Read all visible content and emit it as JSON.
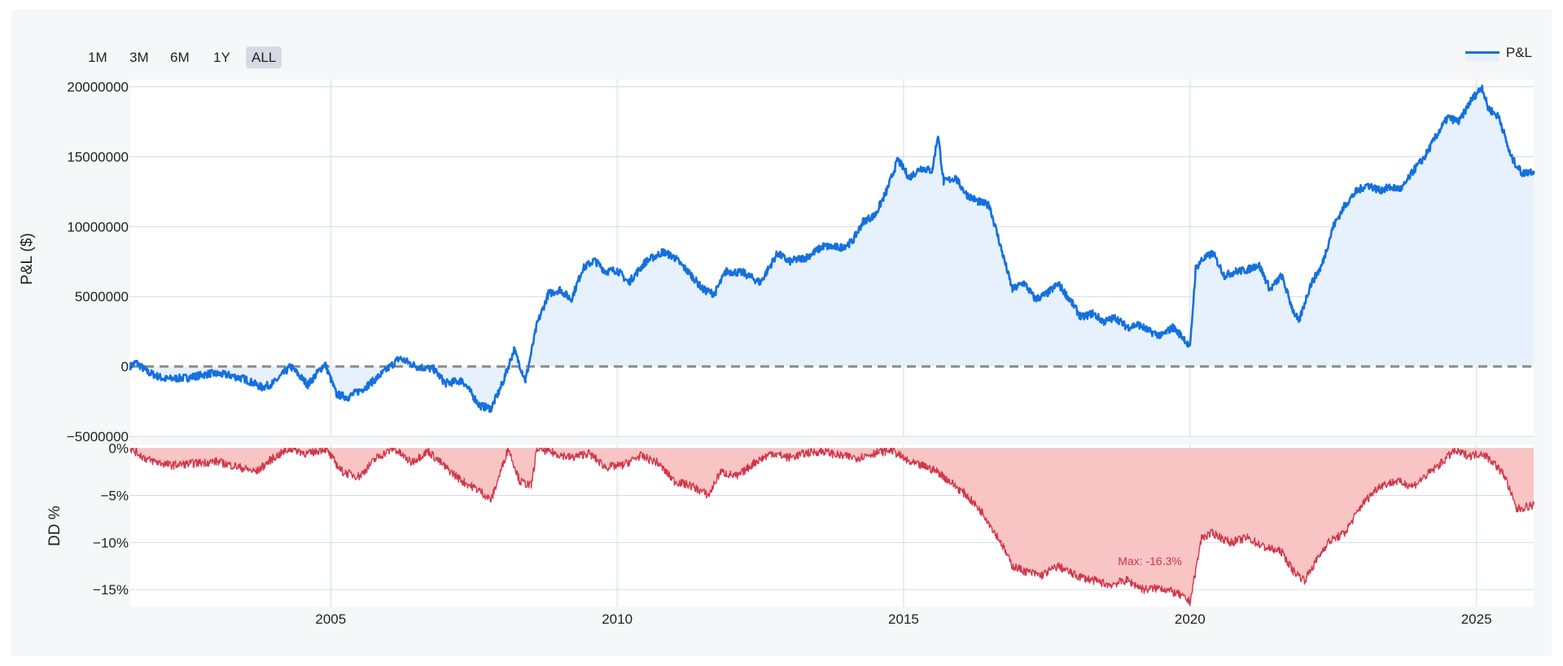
{
  "range_selector": {
    "buttons": [
      {
        "label": "1M",
        "active": false
      },
      {
        "label": "3M",
        "active": false
      },
      {
        "label": "6M",
        "active": false
      },
      {
        "label": "1Y",
        "active": false
      },
      {
        "label": "ALL",
        "active": true
      }
    ]
  },
  "colors": {
    "pnl_line": "#1570dd",
    "pnl_fill": "#e6f1fd",
    "dd_line": "#d0364a",
    "dd_fill": "#f9c4c4",
    "zero_line": "#8a8a8a",
    "grid": "#d5dbe3"
  },
  "chart_data": [
    {
      "type": "line",
      "title": "",
      "ylabel": "P&L ($)",
      "xlabel": "",
      "xlim": [
        2001.5,
        2026.0
      ],
      "ylim": [
        -5000000,
        20500000
      ],
      "y_ticks": [
        -5000000,
        0,
        5000000,
        10000000,
        15000000,
        20000000
      ],
      "y_tick_labels": [
        "−5000000",
        "0",
        "5000000",
        "10000000",
        "15000000",
        "20000000"
      ],
      "grid": true,
      "legend": {
        "placement": "top-right",
        "entries": [
          "P&L"
        ]
      },
      "reference_line": {
        "y": 0,
        "style": "dashed"
      },
      "series": [
        {
          "name": "P&L",
          "x": [
            2001.5,
            2001.6,
            2001.8,
            2002.1,
            2002.5,
            2002.9,
            2003.2,
            2003.5,
            2003.8,
            2004.0,
            2004.3,
            2004.6,
            2004.9,
            2005.1,
            2005.3,
            2005.6,
            2005.9,
            2006.2,
            2006.5,
            2006.8,
            2007.0,
            2007.3,
            2007.6,
            2007.8,
            2008.0,
            2008.2,
            2008.4,
            2008.6,
            2008.8,
            2009.0,
            2009.2,
            2009.4,
            2009.6,
            2009.8,
            2010.0,
            2010.2,
            2010.5,
            2010.8,
            2011.0,
            2011.3,
            2011.5,
            2011.7,
            2011.9,
            2012.2,
            2012.5,
            2012.8,
            2013.0,
            2013.3,
            2013.6,
            2013.9,
            2014.1,
            2014.3,
            2014.5,
            2014.7,
            2014.9,
            2015.1,
            2015.3,
            2015.5,
            2015.6,
            2015.7,
            2015.9,
            2016.1,
            2016.3,
            2016.5,
            2016.7,
            2016.9,
            2017.1,
            2017.3,
            2017.5,
            2017.7,
            2017.9,
            2018.1,
            2018.3,
            2018.5,
            2018.7,
            2018.9,
            2019.1,
            2019.3,
            2019.5,
            2019.7,
            2019.9,
            2020.0,
            2020.1,
            2020.2,
            2020.4,
            2020.6,
            2020.8,
            2021.0,
            2021.2,
            2021.4,
            2021.6,
            2021.8,
            2021.9,
            2022.1,
            2022.3,
            2022.5,
            2022.7,
            2022.9,
            2023.1,
            2023.3,
            2023.5,
            2023.7,
            2023.9,
            2024.1,
            2024.3,
            2024.5,
            2024.7,
            2024.9,
            2025.1,
            2025.2,
            2025.4,
            2025.6,
            2025.8,
            2026.0
          ],
          "values": [
            0,
            300000,
            -400000,
            -900000,
            -800000,
            -500000,
            -600000,
            -900000,
            -1500000,
            -1200000,
            0,
            -1300000,
            200000,
            -2000000,
            -2200000,
            -1500000,
            -500000,
            600000,
            0,
            -200000,
            -1200000,
            -1000000,
            -2800000,
            -3000000,
            -1200000,
            1200000,
            -1000000,
            3000000,
            5200000,
            5500000,
            4800000,
            7000000,
            7600000,
            6800000,
            6900000,
            6000000,
            7500000,
            8200000,
            7800000,
            6500000,
            5500000,
            5200000,
            6800000,
            6700000,
            6000000,
            8100000,
            7500000,
            7800000,
            8600000,
            8500000,
            8900000,
            10400000,
            10800000,
            12500000,
            14800000,
            13500000,
            14200000,
            14000000,
            16600000,
            13200000,
            13500000,
            12300000,
            11800000,
            11500000,
            8500000,
            5500000,
            6000000,
            4800000,
            5200000,
            5900000,
            4800000,
            3500000,
            3800000,
            3200000,
            3500000,
            2800000,
            3000000,
            2500000,
            2200000,
            2800000,
            2000000,
            1300000,
            7000000,
            7600000,
            8100000,
            6500000,
            6800000,
            6900000,
            7300000,
            5500000,
            6500000,
            4000000,
            3200000,
            5800000,
            7200000,
            10000000,
            11500000,
            12500000,
            13000000,
            12600000,
            12800000,
            12700000,
            14000000,
            15000000,
            16500000,
            17800000,
            17500000,
            19000000,
            20000000,
            18500000,
            17800000,
            15000000,
            13800000,
            14000000
          ]
        }
      ]
    },
    {
      "type": "area",
      "title": "",
      "ylabel": "DD %",
      "xlabel": "",
      "xlim": [
        2001.5,
        2026.0
      ],
      "ylim": [
        -16.8,
        0.4
      ],
      "x_ticks": [
        2005,
        2010,
        2015,
        2020,
        2025
      ],
      "x_tick_labels": [
        "2005",
        "2010",
        "2015",
        "2020",
        "2025"
      ],
      "y_ticks": [
        0,
        -5,
        -10,
        -15
      ],
      "y_tick_labels": [
        "0%",
        "−5%",
        "−10%",
        "−15%"
      ],
      "grid": true,
      "annotations": [
        {
          "x": 2019.3,
          "y": -12.4,
          "text": "Max: -16.3%"
        }
      ],
      "series": [
        {
          "name": "",
          "x": [
            2001.5,
            2001.8,
            2002.2,
            2002.6,
            2003.0,
            2003.4,
            2003.7,
            2004.0,
            2004.3,
            2004.6,
            2004.9,
            2005.2,
            2005.5,
            2005.8,
            2006.1,
            2006.4,
            2006.7,
            2007.0,
            2007.3,
            2007.6,
            2007.8,
            2008.1,
            2008.3,
            2008.5,
            2008.6,
            2008.9,
            2009.2,
            2009.5,
            2009.8,
            2010.1,
            2010.4,
            2010.7,
            2011.0,
            2011.3,
            2011.6,
            2011.8,
            2012.1,
            2012.4,
            2012.7,
            2013.0,
            2013.3,
            2013.6,
            2013.9,
            2014.2,
            2014.5,
            2014.8,
            2015.1,
            2015.4,
            2015.6,
            2015.8,
            2016.1,
            2016.4,
            2016.7,
            2016.9,
            2017.1,
            2017.4,
            2017.7,
            2018.0,
            2018.3,
            2018.6,
            2018.9,
            2019.2,
            2019.5,
            2019.8,
            2020.0,
            2020.1,
            2020.2,
            2020.4,
            2020.7,
            2021.0,
            2021.3,
            2021.6,
            2021.8,
            2022.0,
            2022.2,
            2022.4,
            2022.7,
            2023.0,
            2023.3,
            2023.6,
            2023.9,
            2024.2,
            2024.4,
            2024.6,
            2024.9,
            2025.1,
            2025.3,
            2025.5,
            2025.7,
            2026.0
          ],
          "values": [
            0,
            -1.2,
            -1.8,
            -1.6,
            -1.4,
            -2.0,
            -2.5,
            -1.0,
            0,
            -0.6,
            0,
            -2.5,
            -3.0,
            -1.0,
            0,
            -1.5,
            -0.3,
            -2.0,
            -3.5,
            -4.5,
            -5.5,
            0,
            -3.5,
            -4.0,
            0,
            -0.5,
            -1.0,
            -0.5,
            -2.0,
            -1.8,
            -0.8,
            -1.5,
            -3.5,
            -4.0,
            -5.0,
            -2.5,
            -3.0,
            -1.5,
            -0.5,
            -1.0,
            -0.5,
            -0.3,
            -0.8,
            -1.0,
            -0.5,
            -0.2,
            -1.5,
            -2.0,
            -2.5,
            -3.5,
            -5.0,
            -7.0,
            -10.0,
            -12.5,
            -13.0,
            -13.5,
            -12.5,
            -13.5,
            -14.0,
            -14.5,
            -14.0,
            -15.0,
            -14.8,
            -15.5,
            -16.3,
            -13.0,
            -9.5,
            -9.0,
            -10.0,
            -9.5,
            -10.5,
            -11.0,
            -13.0,
            -14.0,
            -12.0,
            -10.0,
            -9.0,
            -6.0,
            -4.0,
            -3.5,
            -4.0,
            -2.5,
            -1.5,
            -0.3,
            -0.8,
            -0.5,
            -1.5,
            -3.0,
            -6.5,
            -6.0
          ]
        }
      ]
    }
  ]
}
